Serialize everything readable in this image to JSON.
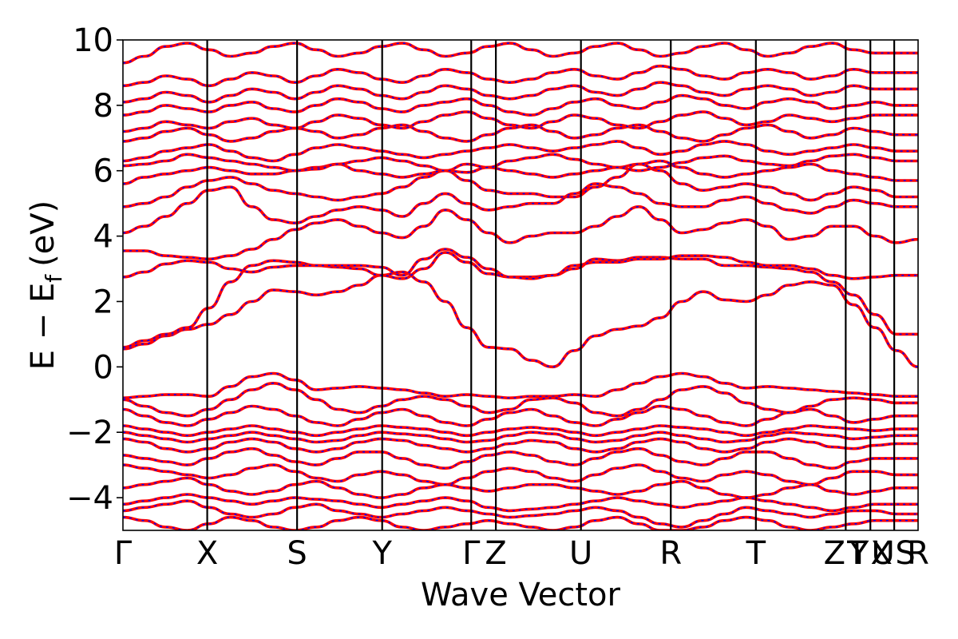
{
  "chart_data": {
    "type": "line",
    "title": "",
    "xlabel": "Wave Vector",
    "ylabel_main": "E − E",
    "ylabel_sub": "f",
    "ylabel_unit": "(eV)",
    "ylim": [
      -5,
      10
    ],
    "y_ticks": [
      -4,
      -2,
      0,
      2,
      4,
      6,
      8,
      10
    ],
    "y_tick_labels": [
      "−4",
      "−2",
      "0",
      "2",
      "4",
      "6",
      "8",
      "10"
    ],
    "kpath": [
      {
        "label": "Γ",
        "pos": 0.0
      },
      {
        "label": "X",
        "pos": 0.106
      },
      {
        "label": "S",
        "pos": 0.219
      },
      {
        "label": "Y",
        "pos": 0.326
      },
      {
        "label": "Γ",
        "pos": 0.438
      },
      {
        "label": "Z",
        "pos": 0.469
      },
      {
        "label": "U",
        "pos": 0.576
      },
      {
        "label": "R",
        "pos": 0.689
      },
      {
        "label": "T",
        "pos": 0.796
      },
      {
        "label": "Z",
        "pos": 0.909
      },
      {
        "label": "T",
        "pos": 0.909
      },
      {
        "label": "Y",
        "pos": 0.94
      },
      {
        "label": "X",
        "pos": 0.94
      },
      {
        "label": "U",
        "pos": 0.97
      },
      {
        "label": "S",
        "pos": 0.97
      },
      {
        "label": "R",
        "pos": 1.0
      }
    ],
    "grid": false,
    "legend": "none",
    "series_style": {
      "primary_color": "#ff0000",
      "overlay_color": "#0000ff",
      "overlay_dash": "dotted"
    },
    "bands_note_count": 44,
    "bands": [
      [
        0.55,
        0.7,
        0.95,
        1.15,
        1.3,
        1.6,
        2.0,
        2.35,
        2.3,
        2.2,
        2.3,
        2.5,
        2.8,
        2.9,
        2.6,
        2.0,
        1.2,
        0.6,
        0.55,
        0.2,
        0.0,
        0.5,
        0.95,
        1.15,
        1.25,
        1.5,
        2.0,
        2.3,
        2.05,
        2.0,
        2.2,
        2.5,
        2.6,
        2.5,
        1.9,
        1.2,
        0.5,
        0.0
      ],
      [
        0.6,
        0.8,
        1.0,
        1.2,
        1.8,
        2.6,
        3.1,
        3.25,
        3.2,
        3.1,
        3.05,
        3.0,
        2.8,
        2.7,
        3.0,
        3.5,
        3.2,
        2.85,
        2.75,
        2.75,
        2.8,
        3.0,
        3.3,
        3.25,
        3.35,
        3.35,
        3.3,
        3.3,
        3.1,
        3.1,
        3.05,
        3.0,
        2.9,
        2.6,
        2.2,
        1.6,
        1.0,
        1.0
      ],
      [
        2.75,
        2.9,
        3.15,
        3.25,
        3.2,
        3.0,
        2.9,
        3.05,
        3.1,
        3.1,
        3.1,
        3.1,
        3.05,
        2.8,
        3.3,
        3.6,
        3.35,
        3.0,
        2.75,
        2.7,
        2.8,
        3.1,
        3.2,
        3.2,
        3.3,
        3.3,
        3.4,
        3.4,
        3.35,
        3.2,
        3.1,
        3.1,
        3.0,
        2.8,
        2.7,
        2.75,
        2.8,
        2.8
      ],
      [
        3.55,
        3.55,
        3.4,
        3.35,
        3.3,
        3.4,
        3.6,
        3.9,
        4.2,
        4.4,
        4.5,
        4.3,
        4.1,
        3.95,
        4.3,
        4.8,
        4.5,
        4.1,
        3.8,
        4.0,
        4.1,
        4.1,
        4.3,
        4.6,
        4.9,
        4.5,
        4.1,
        4.2,
        4.4,
        4.5,
        4.3,
        3.9,
        4.0,
        4.3,
        4.3,
        4.0,
        3.8,
        3.9
      ],
      [
        4.1,
        4.3,
        4.6,
        5.0,
        5.4,
        5.5,
        4.9,
        4.5,
        4.4,
        4.6,
        4.8,
        4.9,
        4.8,
        4.6,
        5.0,
        5.3,
        5.0,
        4.8,
        4.9,
        5.0,
        5.0,
        5.3,
        5.6,
        5.5,
        5.3,
        5.0,
        4.9,
        4.9,
        5.1,
        5.2,
        5.0,
        4.8,
        4.7,
        4.9,
        5.1,
        5.0,
        4.9,
        4.9
      ],
      [
        4.9,
        5.0,
        5.2,
        5.5,
        5.7,
        5.8,
        5.6,
        5.4,
        5.3,
        5.2,
        5.1,
        5.2,
        5.3,
        5.5,
        5.8,
        6.0,
        5.7,
        5.4,
        5.3,
        5.3,
        5.2,
        5.2,
        5.5,
        5.8,
        6.2,
        6.0,
        5.6,
        5.4,
        5.5,
        5.6,
        5.5,
        5.3,
        5.1,
        5.3,
        5.5,
        5.4,
        5.2,
        5.2
      ],
      [
        5.6,
        5.8,
        5.9,
        6.0,
        6.1,
        6.0,
        5.9,
        5.9,
        6.0,
        6.1,
        6.2,
        6.0,
        5.9,
        5.8,
        5.9,
        6.0,
        6.2,
        6.1,
        6.0,
        5.9,
        5.8,
        5.9,
        6.0,
        6.1,
        6.2,
        6.3,
        6.1,
        5.9,
        5.8,
        5.9,
        6.0,
        6.1,
        6.2,
        6.0,
        5.9,
        5.8,
        5.7,
        5.7
      ],
      [
        6.15,
        6.2,
        6.3,
        6.5,
        6.4,
        6.3,
        6.2,
        6.1,
        6.0,
        6.05,
        6.2,
        6.3,
        6.4,
        6.3,
        6.15,
        6.0,
        5.95,
        6.1,
        6.3,
        6.4,
        6.5,
        6.35,
        6.2,
        6.1,
        6.0,
        6.1,
        6.25,
        6.4,
        6.45,
        6.3,
        6.2,
        6.15,
        6.3,
        6.45,
        6.5,
        6.4,
        6.3,
        6.3
      ],
      [
        6.3,
        6.4,
        6.6,
        6.7,
        6.8,
        6.6,
        6.4,
        6.3,
        6.5,
        6.7,
        6.8,
        6.7,
        6.6,
        6.5,
        6.4,
        6.5,
        6.6,
        6.7,
        6.8,
        6.7,
        6.6,
        6.7,
        6.8,
        6.9,
        6.7,
        6.5,
        6.6,
        6.8,
        6.9,
        6.8,
        6.6,
        6.5,
        6.6,
        6.7,
        6.8,
        6.7,
        6.6,
        6.6
      ],
      [
        6.9,
        7.0,
        7.2,
        7.3,
        7.1,
        6.9,
        7.0,
        7.2,
        7.3,
        7.2,
        7.0,
        7.1,
        7.3,
        7.4,
        7.2,
        7.0,
        6.9,
        7.1,
        7.3,
        7.4,
        7.2,
        7.0,
        7.1,
        7.3,
        7.4,
        7.2,
        7.0,
        6.9,
        7.1,
        7.3,
        7.4,
        7.2,
        7.0,
        7.1,
        7.3,
        7.2,
        7.1,
        7.1
      ],
      [
        7.2,
        7.3,
        7.5,
        7.4,
        7.3,
        7.5,
        7.6,
        7.4,
        7.3,
        7.5,
        7.7,
        7.6,
        7.4,
        7.3,
        7.5,
        7.7,
        7.8,
        7.6,
        7.4,
        7.3,
        7.5,
        7.7,
        7.6,
        7.4,
        7.3,
        7.5,
        7.7,
        7.8,
        7.6,
        7.4,
        7.5,
        7.7,
        7.6,
        7.5,
        7.6,
        7.7,
        7.7,
        7.7
      ],
      [
        7.7,
        7.8,
        8.0,
        7.9,
        7.8,
        8.0,
        8.1,
        7.9,
        7.8,
        8.0,
        8.2,
        8.1,
        7.9,
        7.8,
        8.0,
        8.1,
        8.2,
        8.0,
        7.8,
        7.7,
        7.9,
        8.1,
        8.2,
        8.0,
        7.9,
        8.1,
        8.3,
        8.2,
        8.0,
        7.9,
        8.1,
        8.2,
        8.1,
        7.9,
        8.0,
        8.1,
        8.0,
        8.0
      ],
      [
        8.1,
        8.2,
        8.4,
        8.3,
        8.1,
        8.3,
        8.5,
        8.4,
        8.2,
        8.4,
        8.6,
        8.5,
        8.3,
        8.2,
        8.4,
        8.6,
        8.5,
        8.3,
        8.2,
        8.3,
        8.5,
        8.6,
        8.4,
        8.3,
        8.5,
        8.7,
        8.6,
        8.4,
        8.3,
        8.5,
        8.6,
        8.5,
        8.3,
        8.4,
        8.6,
        8.5,
        8.5,
        8.5
      ],
      [
        8.6,
        8.7,
        8.9,
        8.8,
        8.6,
        8.8,
        9.0,
        8.9,
        8.7,
        8.9,
        9.1,
        9.0,
        8.8,
        8.7,
        8.9,
        9.1,
        9.0,
        8.8,
        8.7,
        8.8,
        9.0,
        9.1,
        8.9,
        8.8,
        9.0,
        9.2,
        9.1,
        8.9,
        8.8,
        9.0,
        9.1,
        9.0,
        8.8,
        8.9,
        9.1,
        9.0,
        9.0,
        9.0
      ],
      [
        9.3,
        9.5,
        9.8,
        9.9,
        9.7,
        9.5,
        9.6,
        9.8,
        9.9,
        9.7,
        9.5,
        9.6,
        9.8,
        9.9,
        9.7,
        9.5,
        9.6,
        9.8,
        9.9,
        9.7,
        9.5,
        9.6,
        9.8,
        9.9,
        9.7,
        9.5,
        9.6,
        9.8,
        9.9,
        9.7,
        9.5,
        9.6,
        9.8,
        9.9,
        9.7,
        9.6,
        9.6,
        9.6
      ],
      [
        -0.95,
        -0.9,
        -0.85,
        -0.85,
        -0.9,
        -0.6,
        -0.3,
        -0.2,
        -0.4,
        -0.7,
        -0.65,
        -0.6,
        -0.65,
        -0.7,
        -0.8,
        -0.9,
        -0.85,
        -0.9,
        -0.95,
        -0.9,
        -0.9,
        -0.85,
        -0.9,
        -0.7,
        -0.5,
        -0.3,
        -0.2,
        -0.3,
        -0.5,
        -0.65,
        -0.6,
        -0.65,
        -0.7,
        -0.75,
        -0.8,
        -0.85,
        -0.9,
        -0.9
      ],
      [
        -1.0,
        -1.2,
        -1.4,
        -1.5,
        -1.3,
        -1.0,
        -0.7,
        -0.5,
        -0.7,
        -1.0,
        -1.3,
        -1.4,
        -1.2,
        -1.0,
        -0.9,
        -1.0,
        -1.2,
        -1.4,
        -1.3,
        -1.0,
        -0.95,
        -1.1,
        -1.4,
        -1.5,
        -1.3,
        -1.0,
        -0.7,
        -0.6,
        -0.8,
        -1.1,
        -1.3,
        -1.4,
        -1.2,
        -1.0,
        -0.95,
        -1.0,
        -1.1,
        -1.1
      ],
      [
        -1.3,
        -1.5,
        -1.7,
        -1.8,
        -1.6,
        -1.4,
        -1.2,
        -1.3,
        -1.5,
        -1.7,
        -1.8,
        -1.6,
        -1.4,
        -1.3,
        -1.5,
        -1.7,
        -1.8,
        -1.6,
        -1.4,
        -1.3,
        -1.5,
        -1.7,
        -1.8,
        -1.6,
        -1.4,
        -1.2,
        -1.3,
        -1.5,
        -1.7,
        -1.8,
        -1.6,
        -1.4,
        -1.3,
        -1.5,
        -1.7,
        -1.6,
        -1.5,
        -1.5
      ],
      [
        -1.8,
        -1.9,
        -2.0,
        -2.1,
        -2.0,
        -1.9,
        -1.8,
        -1.9,
        -2.0,
        -2.1,
        -2.0,
        -1.9,
        -1.8,
        -1.85,
        -1.9,
        -2.0,
        -2.1,
        -2.0,
        -1.9,
        -1.85,
        -1.9,
        -2.0,
        -2.1,
        -2.0,
        -1.9,
        -1.8,
        -1.85,
        -1.9,
        -2.0,
        -2.1,
        -2.0,
        -1.9,
        -1.8,
        -1.85,
        -1.9,
        -1.95,
        -1.9,
        -1.9
      ],
      [
        -2.0,
        -2.1,
        -2.2,
        -2.3,
        -2.2,
        -2.1,
        -2.0,
        -2.1,
        -2.2,
        -2.3,
        -2.25,
        -2.1,
        -2.0,
        -2.05,
        -2.1,
        -2.2,
        -2.3,
        -2.25,
        -2.1,
        -2.0,
        -2.05,
        -2.2,
        -2.3,
        -2.25,
        -2.1,
        -2.0,
        -2.1,
        -2.2,
        -2.3,
        -2.25,
        -2.1,
        -2.0,
        -2.05,
        -2.1,
        -2.2,
        -2.15,
        -2.1,
        -2.1
      ],
      [
        -2.2,
        -2.3,
        -2.5,
        -2.6,
        -2.5,
        -2.3,
        -2.2,
        -2.3,
        -2.5,
        -2.6,
        -2.5,
        -2.3,
        -2.2,
        -2.25,
        -2.4,
        -2.5,
        -2.6,
        -2.5,
        -2.35,
        -2.25,
        -2.3,
        -2.5,
        -2.6,
        -2.5,
        -2.3,
        -2.2,
        -2.3,
        -2.5,
        -2.6,
        -2.5,
        -2.3,
        -2.2,
        -2.3,
        -2.45,
        -2.5,
        -2.4,
        -2.35,
        -2.35
      ],
      [
        -2.7,
        -2.8,
        -2.9,
        -3.0,
        -2.8,
        -2.6,
        -2.5,
        -2.7,
        -2.9,
        -3.0,
        -2.8,
        -2.6,
        -2.6,
        -2.8,
        -3.0,
        -3.1,
        -2.9,
        -2.7,
        -2.6,
        -2.7,
        -2.9,
        -3.0,
        -2.8,
        -2.6,
        -2.5,
        -2.7,
        -2.9,
        -3.0,
        -2.8,
        -2.6,
        -2.6,
        -2.8,
        -3.0,
        -3.1,
        -2.9,
        -2.8,
        -2.8,
        -2.8
      ],
      [
        -3.0,
        -3.1,
        -3.2,
        -3.3,
        -3.4,
        -3.3,
        -3.1,
        -3.0,
        -3.2,
        -3.4,
        -3.5,
        -3.3,
        -3.2,
        -3.3,
        -3.5,
        -3.6,
        -3.4,
        -3.2,
        -3.1,
        -3.2,
        -3.4,
        -3.5,
        -3.3,
        -3.1,
        -3.0,
        -3.2,
        -3.4,
        -3.5,
        -3.3,
        -3.2,
        -3.3,
        -3.5,
        -3.6,
        -3.4,
        -3.2,
        -3.2,
        -3.3,
        -3.3
      ],
      [
        -3.7,
        -3.6,
        -3.5,
        -3.4,
        -3.6,
        -3.8,
        -3.9,
        -3.8,
        -3.6,
        -3.5,
        -3.7,
        -3.9,
        -4.0,
        -3.9,
        -3.7,
        -3.6,
        -3.7,
        -3.8,
        -3.7,
        -3.6,
        -3.6,
        -3.7,
        -3.8,
        -3.9,
        -3.8,
        -3.6,
        -3.5,
        -3.7,
        -3.9,
        -4.0,
        -3.9,
        -3.7,
        -3.6,
        -3.8,
        -3.9,
        -3.8,
        -3.7,
        -3.7
      ],
      [
        -4.2,
        -4.1,
        -4.0,
        -3.9,
        -4.0,
        -4.1,
        -4.2,
        -4.1,
        -4.0,
        -4.05,
        -4.1,
        -4.2,
        -4.3,
        -4.2,
        -4.1,
        -4.0,
        -4.1,
        -4.3,
        -4.4,
        -4.35,
        -4.3,
        -4.2,
        -4.1,
        -4.0,
        -4.1,
        -4.2,
        -4.3,
        -4.2,
        -4.1,
        -4.0,
        -4.1,
        -4.2,
        -4.3,
        -4.4,
        -4.3,
        -4.2,
        -4.2,
        -4.2
      ],
      [
        -4.4,
        -4.3,
        -4.2,
        -4.1,
        -4.3,
        -4.5,
        -4.6,
        -4.5,
        -4.3,
        -4.2,
        -4.4,
        -4.5,
        -4.6,
        -4.5,
        -4.4,
        -4.3,
        -4.4,
        -4.5,
        -4.6,
        -4.55,
        -4.5,
        -4.4,
        -4.3,
        -4.4,
        -4.6,
        -4.8,
        -4.9,
        -4.7,
        -4.5,
        -4.3,
        -4.4,
        -4.5,
        -4.6,
        -4.5,
        -4.4,
        -4.4,
        -4.5,
        -4.5
      ],
      [
        -4.6,
        -4.7,
        -4.9,
        -5.0,
        -4.8,
        -4.6,
        -4.7,
        -4.9,
        -5.0,
        -4.9,
        -4.7,
        -4.6,
        -4.7,
        -4.9,
        -5.0,
        -4.9,
        -4.8,
        -4.7,
        -4.8,
        -4.9,
        -5.0,
        -4.9,
        -4.7,
        -4.6,
        -4.8,
        -5.0,
        -5.0,
        -4.9,
        -4.7,
        -4.6,
        -4.7,
        -4.9,
        -5.0,
        -4.9,
        -4.8,
        -4.7,
        -4.7,
        -4.7
      ]
    ]
  }
}
